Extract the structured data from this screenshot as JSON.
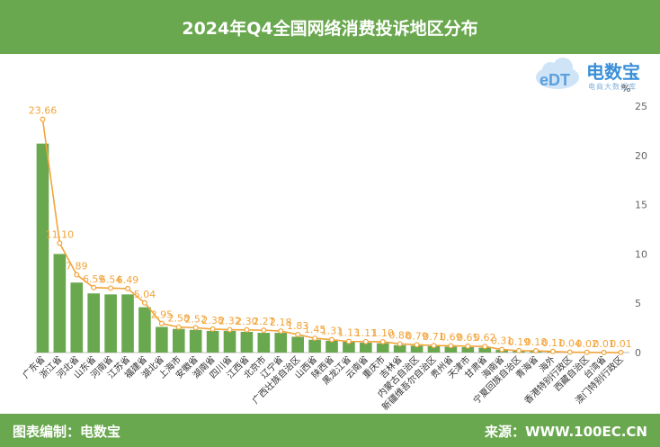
{
  "header": {
    "title": "2024年Q4全国网络消费投诉地区分布"
  },
  "footer": {
    "left": "图表编制：电数宝",
    "right": "来源：WWW.100EC.CN"
  },
  "logo": {
    "text": "电数宝",
    "sub": "电商大数据库",
    "badge": "eDT",
    "icon": "cloud-logo-icon"
  },
  "chart_data": {
    "type": "bar",
    "unit": "%",
    "ylim": [
      0,
      25
    ],
    "yticks": [
      0,
      5,
      10,
      15,
      20,
      25
    ],
    "grid": false,
    "categories": [
      "广东省",
      "浙江省",
      "河北省",
      "山东省",
      "河南省",
      "江苏省",
      "福建省",
      "湖北省",
      "上海市",
      "安徽省",
      "湖南省",
      "四川省",
      "江西省",
      "北京市",
      "辽宁省",
      "广西壮族自治区",
      "山西省",
      "陕西省",
      "黑龙江省",
      "云南省",
      "重庆市",
      "吉林省",
      "内蒙古自治区",
      "新疆维吾尔自治区",
      "贵州省",
      "天津市",
      "甘肃省",
      "海南省",
      "宁夏回族自治区",
      "青海省",
      "海外",
      "香港特别行政区",
      "西藏自治区",
      "台湾省",
      "澳门特别行政区"
    ],
    "series": [
      {
        "type": "bar",
        "color": "#6aa84f",
        "values": [
          21.2,
          10.0,
          7.1,
          6.0,
          5.9,
          5.9,
          4.6,
          2.6,
          2.4,
          2.3,
          2.2,
          2.2,
          2.1,
          2.0,
          2.0,
          1.6,
          1.3,
          1.2,
          1.1,
          1.0,
          0.95,
          0.75,
          0.7,
          0.65,
          0.6,
          0.55,
          0.5,
          0.28,
          0.17,
          0.16,
          0.1,
          0.04,
          0.02,
          0.01,
          0.01
        ]
      },
      {
        "type": "line",
        "color": "#f3a43a",
        "values": [
          23.66,
          11.1,
          7.89,
          6.59,
          6.54,
          6.49,
          5.04,
          2.95,
          2.58,
          2.52,
          2.38,
          2.32,
          2.3,
          2.27,
          2.18,
          1.83,
          1.45,
          1.31,
          1.13,
          1.11,
          1.1,
          0.88,
          0.79,
          0.71,
          0.69,
          0.65,
          0.62,
          0.31,
          0.19,
          0.18,
          0.11,
          0.04,
          0.02,
          0.01,
          0.01
        ],
        "labels": [
          "23.66",
          "11.10",
          "7.89",
          "6.59",
          "6.54",
          "6.49",
          "5.04",
          "2.95",
          "2.58",
          "2.52",
          "2.38",
          "2.32",
          "2.30",
          "2.27",
          "2.18",
          "1.83",
          "1.45",
          "1.31",
          "1.13",
          "1.11",
          "1.10",
          "0.88",
          "0.79",
          "0.71",
          "0.69",
          "0.65",
          "0.62",
          "0.31",
          "0.19",
          "0.18",
          "0.11",
          "0.04",
          "0.02",
          "0.01",
          "0.01"
        ]
      }
    ]
  }
}
